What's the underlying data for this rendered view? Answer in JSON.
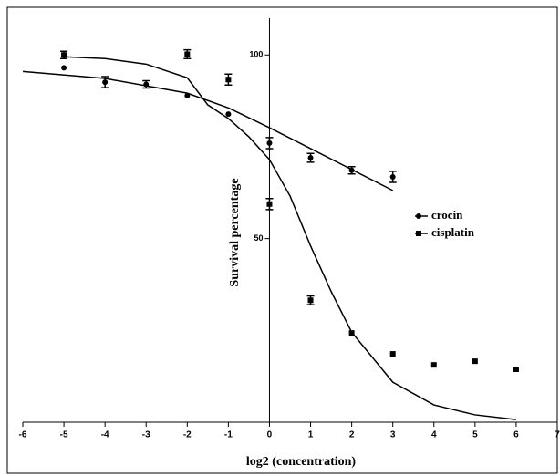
{
  "chart_data": {
    "type": "scatter",
    "x_label": "log2 (concentration)",
    "y_label": "Survival percentage",
    "xlim": [
      -6,
      7
    ],
    "xticks": [
      -6,
      -5,
      -4,
      -3,
      -2,
      -1,
      0,
      1,
      2,
      3,
      4,
      5,
      6,
      7
    ],
    "ylim": [
      0,
      110
    ],
    "yticks": [
      50,
      100
    ],
    "legend": "right",
    "series": [
      {
        "name": "crocin",
        "color": "#000000",
        "marker": "circle",
        "x": [
          -5,
          -4,
          -3,
          -2,
          -1,
          0,
          1,
          2,
          3
        ],
        "values": [
          96.5,
          92.6,
          92,
          88.9,
          83.9,
          76,
          72,
          68.6,
          66.8
        ],
        "errors": [
          null,
          1.5,
          1,
          null,
          null,
          1.5,
          1.2,
          1,
          1.5
        ],
        "fit_x": [
          -6,
          -4,
          -2,
          -1,
          0,
          1,
          2,
          3
        ],
        "fit_values": [
          95.5,
          93.6,
          89.6,
          85.6,
          80.2,
          74.5,
          68.8,
          63.1
        ]
      },
      {
        "name": "cisplatin",
        "color": "#000000",
        "marker": "square",
        "x": [
          -5,
          -2,
          -1,
          0,
          1,
          2,
          3,
          4,
          5,
          6
        ],
        "values": [
          100,
          100.2,
          93.3,
          59.4,
          33.2,
          24.3,
          18.6,
          15.6,
          16.6,
          14.4
        ],
        "errors": [
          1,
          1.2,
          1.5,
          1.5,
          1.2,
          null,
          null,
          null,
          null,
          null
        ],
        "fit_x": [
          -5,
          -4,
          -3,
          -2,
          -1.5,
          -1,
          -0.5,
          0,
          0.5,
          1,
          1.5,
          2,
          3,
          4,
          5,
          6
        ],
        "fit_values": [
          99.5,
          99,
          97.5,
          93.8,
          86.4,
          82.7,
          77.7,
          71.5,
          61.6,
          48,
          35.6,
          24.5,
          10.9,
          4.7,
          2,
          0.7
        ]
      }
    ]
  }
}
